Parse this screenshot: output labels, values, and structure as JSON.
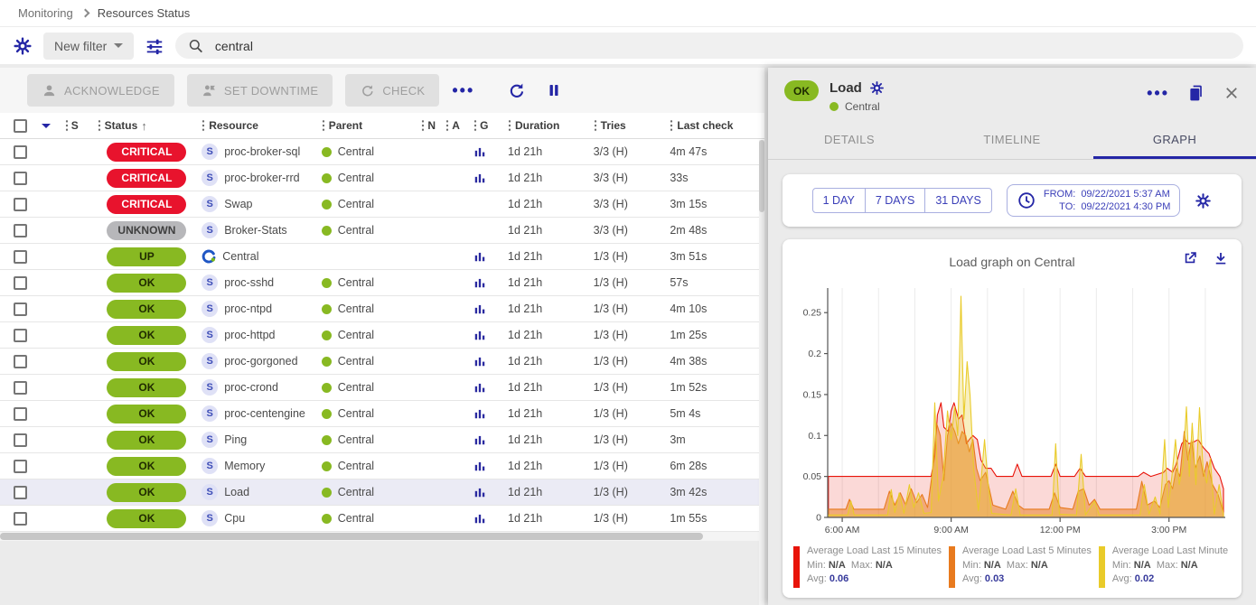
{
  "breadcrumb": {
    "items": [
      "Monitoring",
      "Resources Status"
    ]
  },
  "filter": {
    "new_filter_label": "New filter",
    "search_value": "central"
  },
  "toolbar": {
    "acknowledge_label": "ACKNOWLEDGE",
    "set_downtime_label": "SET DOWNTIME",
    "check_label": "CHECK",
    "more_label": "•••"
  },
  "table": {
    "headers": {
      "s": "S",
      "status": "Status",
      "sort_arrow": "↑",
      "resource": "Resource",
      "parent": "Parent",
      "n": "N",
      "a": "A",
      "g": "G",
      "duration": "Duration",
      "tries": "Tries",
      "last_check": "Last check"
    },
    "rows": [
      {
        "status": "CRITICAL",
        "sev": "critical",
        "kind": "service",
        "resource": "proc-broker-sql",
        "parent": "Central",
        "graph": true,
        "duration": "1d 21h",
        "tries": "3/3 (H)",
        "last_check": "4m 47s",
        "selected": false
      },
      {
        "status": "CRITICAL",
        "sev": "critical",
        "kind": "service",
        "resource": "proc-broker-rrd",
        "parent": "Central",
        "graph": true,
        "duration": "1d 21h",
        "tries": "3/3 (H)",
        "last_check": "33s",
        "selected": false
      },
      {
        "status": "CRITICAL",
        "sev": "critical",
        "kind": "service",
        "resource": "Swap",
        "parent": "Central",
        "graph": false,
        "duration": "1d 21h",
        "tries": "3/3 (H)",
        "last_check": "3m 15s",
        "selected": false
      },
      {
        "status": "UNKNOWN",
        "sev": "unknown",
        "kind": "service",
        "resource": "Broker-Stats",
        "parent": "Central",
        "graph": false,
        "duration": "1d 21h",
        "tries": "3/3 (H)",
        "last_check": "2m 48s",
        "selected": false
      },
      {
        "status": "UP",
        "sev": "up",
        "kind": "host",
        "resource": "Central",
        "parent": "",
        "graph": true,
        "duration": "1d 21h",
        "tries": "1/3 (H)",
        "last_check": "3m 51s",
        "selected": false
      },
      {
        "status": "OK",
        "sev": "ok",
        "kind": "service",
        "resource": "proc-sshd",
        "parent": "Central",
        "graph": true,
        "duration": "1d 21h",
        "tries": "1/3 (H)",
        "last_check": "57s",
        "selected": false
      },
      {
        "status": "OK",
        "sev": "ok",
        "kind": "service",
        "resource": "proc-ntpd",
        "parent": "Central",
        "graph": true,
        "duration": "1d 21h",
        "tries": "1/3 (H)",
        "last_check": "4m 10s",
        "selected": false
      },
      {
        "status": "OK",
        "sev": "ok",
        "kind": "service",
        "resource": "proc-httpd",
        "parent": "Central",
        "graph": true,
        "duration": "1d 21h",
        "tries": "1/3 (H)",
        "last_check": "1m 25s",
        "selected": false
      },
      {
        "status": "OK",
        "sev": "ok",
        "kind": "service",
        "resource": "proc-gorgoned",
        "parent": "Central",
        "graph": true,
        "duration": "1d 21h",
        "tries": "1/3 (H)",
        "last_check": "4m 38s",
        "selected": false
      },
      {
        "status": "OK",
        "sev": "ok",
        "kind": "service",
        "resource": "proc-crond",
        "parent": "Central",
        "graph": true,
        "duration": "1d 21h",
        "tries": "1/3 (H)",
        "last_check": "1m 52s",
        "selected": false
      },
      {
        "status": "OK",
        "sev": "ok",
        "kind": "service",
        "resource": "proc-centengine",
        "parent": "Central",
        "graph": true,
        "duration": "1d 21h",
        "tries": "1/3 (H)",
        "last_check": "5m 4s",
        "selected": false
      },
      {
        "status": "OK",
        "sev": "ok",
        "kind": "service",
        "resource": "Ping",
        "parent": "Central",
        "graph": true,
        "duration": "1d 21h",
        "tries": "1/3 (H)",
        "last_check": "3m",
        "selected": false
      },
      {
        "status": "OK",
        "sev": "ok",
        "kind": "service",
        "resource": "Memory",
        "parent": "Central",
        "graph": true,
        "duration": "1d 21h",
        "tries": "1/3 (H)",
        "last_check": "6m 28s",
        "selected": false
      },
      {
        "status": "OK",
        "sev": "ok",
        "kind": "service",
        "resource": "Load",
        "parent": "Central",
        "graph": true,
        "duration": "1d 21h",
        "tries": "1/3 (H)",
        "last_check": "3m 42s",
        "selected": true
      },
      {
        "status": "OK",
        "sev": "ok",
        "kind": "service",
        "resource": "Cpu",
        "parent": "Central",
        "graph": true,
        "duration": "1d 21h",
        "tries": "1/3 (H)",
        "last_check": "1m 55s",
        "selected": false
      }
    ]
  },
  "drawer": {
    "status": "OK",
    "title": "Load",
    "subtitle": "Central",
    "tabs": [
      {
        "label": "DETAILS",
        "active": false
      },
      {
        "label": "TIMELINE",
        "active": false
      },
      {
        "label": "GRAPH",
        "active": true
      }
    ],
    "time_range": {
      "buttons": [
        "1 DAY",
        "7 DAYS",
        "31 DAYS"
      ],
      "from_label": "FROM:",
      "from_value": "09/22/2021 5:37 AM",
      "to_label": "TO:",
      "to_value": "09/22/2021 4:30 PM"
    },
    "graph": {
      "title": "Load graph on Central",
      "legend_labels": {
        "min": "Min:",
        "max": "Max:",
        "avg": "Avg:"
      }
    }
  },
  "chart_data": {
    "type": "area",
    "title": "Load graph on Central",
    "x_range_hours": [
      5.6,
      16.55
    ],
    "x_ticks": [
      {
        "hour": 6,
        "label": "6:00 AM"
      },
      {
        "hour": 9,
        "label": "9:00 AM"
      },
      {
        "hour": 12,
        "label": "12:00 PM"
      },
      {
        "hour": 15,
        "label": "3:00 PM"
      }
    ],
    "grid_hours": [
      6,
      7,
      8,
      9,
      10,
      11,
      12,
      13,
      14,
      15,
      16
    ],
    "y_ticks": [
      0,
      0.05,
      0.1,
      0.15,
      0.2,
      0.25
    ],
    "ylim": [
      0,
      0.28
    ],
    "series": [
      {
        "name": "Average Load Last 15 Minutes",
        "color": "#e81309",
        "fill": "rgba(232,19,9,0.16)",
        "min": "N/A",
        "max": "N/A",
        "avg": "0.06",
        "points": [
          [
            5.62,
            0.05
          ],
          [
            8.45,
            0.05
          ],
          [
            8.55,
            0.075
          ],
          [
            8.62,
            0.125
          ],
          [
            8.72,
            0.14
          ],
          [
            8.8,
            0.11
          ],
          [
            8.92,
            0.105
          ],
          [
            9.0,
            0.13
          ],
          [
            9.08,
            0.14
          ],
          [
            9.2,
            0.12
          ],
          [
            9.3,
            0.125
          ],
          [
            9.42,
            0.09
          ],
          [
            9.5,
            0.095
          ],
          [
            9.6,
            0.1
          ],
          [
            9.72,
            0.095
          ],
          [
            9.82,
            0.07
          ],
          [
            9.95,
            0.06
          ],
          [
            10.1,
            0.06
          ],
          [
            10.25,
            0.05
          ],
          [
            10.7,
            0.05
          ],
          [
            10.82,
            0.065
          ],
          [
            10.95,
            0.05
          ],
          [
            11.75,
            0.05
          ],
          [
            11.88,
            0.065
          ],
          [
            12.0,
            0.05
          ],
          [
            12.4,
            0.05
          ],
          [
            12.55,
            0.06
          ],
          [
            12.7,
            0.05
          ],
          [
            14.15,
            0.05
          ],
          [
            14.3,
            0.055
          ],
          [
            14.5,
            0.05
          ],
          [
            14.85,
            0.055
          ],
          [
            14.95,
            0.06
          ],
          [
            15.1,
            0.055
          ],
          [
            15.2,
            0.065
          ],
          [
            15.35,
            0.09
          ],
          [
            15.45,
            0.095
          ],
          [
            15.55,
            0.09
          ],
          [
            15.68,
            0.092
          ],
          [
            15.8,
            0.095
          ],
          [
            15.95,
            0.085
          ],
          [
            16.1,
            0.078
          ],
          [
            16.25,
            0.06
          ],
          [
            16.4,
            0.05
          ],
          [
            16.5,
            0.035
          ]
        ]
      },
      {
        "name": "Average Load Last 5 Minutes",
        "color": "#e87a1e",
        "fill": "rgba(232,122,30,0.5)",
        "min": "N/A",
        "max": "N/A",
        "avg": "0.03",
        "points": [
          [
            5.62,
            0.01
          ],
          [
            6.1,
            0.01
          ],
          [
            6.2,
            0.022
          ],
          [
            6.32,
            0.01
          ],
          [
            7.15,
            0.01
          ],
          [
            7.3,
            0.032
          ],
          [
            7.45,
            0.015
          ],
          [
            7.6,
            0.03
          ],
          [
            7.75,
            0.015
          ],
          [
            7.9,
            0.035
          ],
          [
            8.05,
            0.018
          ],
          [
            8.2,
            0.028
          ],
          [
            8.35,
            0.012
          ],
          [
            8.5,
            0.06
          ],
          [
            8.6,
            0.115
          ],
          [
            8.7,
            0.1
          ],
          [
            8.8,
            0.045
          ],
          [
            8.9,
            0.1
          ],
          [
            9.0,
            0.115
          ],
          [
            9.1,
            0.105
          ],
          [
            9.2,
            0.09
          ],
          [
            9.3,
            0.105
          ],
          [
            9.4,
            0.1
          ],
          [
            9.5,
            0.08
          ],
          [
            9.6,
            0.095
          ],
          [
            9.7,
            0.06
          ],
          [
            9.8,
            0.045
          ],
          [
            9.95,
            0.055
          ],
          [
            10.05,
            0.035
          ],
          [
            10.15,
            0.015
          ],
          [
            10.5,
            0.01
          ],
          [
            10.7,
            0.032
          ],
          [
            10.85,
            0.015
          ],
          [
            11.0,
            0.01
          ],
          [
            11.7,
            0.01
          ],
          [
            11.85,
            0.03
          ],
          [
            12.0,
            0.012
          ],
          [
            12.35,
            0.01
          ],
          [
            12.5,
            0.032
          ],
          [
            12.65,
            0.035
          ],
          [
            12.8,
            0.015
          ],
          [
            12.95,
            0.022
          ],
          [
            13.1,
            0.01
          ],
          [
            14.1,
            0.01
          ],
          [
            14.25,
            0.044
          ],
          [
            14.4,
            0.015
          ],
          [
            14.6,
            0.02
          ],
          [
            14.75,
            0.012
          ],
          [
            14.9,
            0.04
          ],
          [
            15.0,
            0.045
          ],
          [
            15.1,
            0.035
          ],
          [
            15.2,
            0.06
          ],
          [
            15.3,
            0.05
          ],
          [
            15.42,
            0.105
          ],
          [
            15.52,
            0.07
          ],
          [
            15.62,
            0.095
          ],
          [
            15.72,
            0.06
          ],
          [
            15.85,
            0.075
          ],
          [
            15.95,
            0.05
          ],
          [
            16.05,
            0.068
          ],
          [
            16.2,
            0.04
          ],
          [
            16.35,
            0.028
          ],
          [
            16.5,
            0.005
          ]
        ]
      },
      {
        "name": "Average Load Last Minute",
        "color": "#e9cb2a",
        "fill": "rgba(233,203,42,0.3)",
        "min": "N/A",
        "max": "N/A",
        "avg": "0.02",
        "points": [
          [
            5.62,
            0.003
          ],
          [
            6.15,
            0.003
          ],
          [
            6.24,
            0.02
          ],
          [
            6.33,
            0.003
          ],
          [
            7.25,
            0.003
          ],
          [
            7.35,
            0.034
          ],
          [
            7.45,
            0.006
          ],
          [
            7.57,
            0.03
          ],
          [
            7.7,
            0.005
          ],
          [
            7.85,
            0.04
          ],
          [
            7.97,
            0.012
          ],
          [
            8.1,
            0.03
          ],
          [
            8.25,
            0.005
          ],
          [
            8.45,
            0.006
          ],
          [
            8.55,
            0.14
          ],
          [
            8.65,
            0.02
          ],
          [
            8.78,
            0.05
          ],
          [
            8.9,
            0.13
          ],
          [
            9.0,
            0.095
          ],
          [
            9.1,
            0.135
          ],
          [
            9.18,
            0.1
          ],
          [
            9.27,
            0.27
          ],
          [
            9.35,
            0.12
          ],
          [
            9.44,
            0.19
          ],
          [
            9.52,
            0.15
          ],
          [
            9.62,
            0.06
          ],
          [
            9.75,
            0.008
          ],
          [
            9.92,
            0.095
          ],
          [
            10.02,
            0.04
          ],
          [
            10.12,
            0.005
          ],
          [
            10.65,
            0.003
          ],
          [
            10.78,
            0.035
          ],
          [
            10.9,
            0.003
          ],
          [
            11.78,
            0.003
          ],
          [
            11.88,
            0.09
          ],
          [
            11.98,
            0.004
          ],
          [
            12.45,
            0.003
          ],
          [
            12.58,
            0.077
          ],
          [
            12.7,
            0.003
          ],
          [
            12.95,
            0.02
          ],
          [
            13.08,
            0.003
          ],
          [
            14.2,
            0.003
          ],
          [
            14.32,
            0.04
          ],
          [
            14.45,
            0.004
          ],
          [
            14.62,
            0.025
          ],
          [
            14.75,
            0.004
          ],
          [
            14.88,
            0.095
          ],
          [
            14.98,
            0.012
          ],
          [
            15.08,
            0.05
          ],
          [
            15.18,
            0.095
          ],
          [
            15.28,
            0.04
          ],
          [
            15.38,
            0.062
          ],
          [
            15.48,
            0.135
          ],
          [
            15.56,
            0.05
          ],
          [
            15.64,
            0.115
          ],
          [
            15.74,
            0.04
          ],
          [
            15.84,
            0.134
          ],
          [
            15.94,
            0.06
          ],
          [
            16.04,
            0.042
          ],
          [
            16.14,
            0.072
          ],
          [
            16.25,
            0.004
          ],
          [
            16.38,
            0.04
          ],
          [
            16.5,
            0.003
          ]
        ]
      }
    ]
  },
  "colors": {
    "accent": "#2426a6",
    "ok_green": "#88b922",
    "critical_red": "#e8132d",
    "unknown_gray": "#b7b7ba",
    "selected_row": "#ebebf5"
  }
}
